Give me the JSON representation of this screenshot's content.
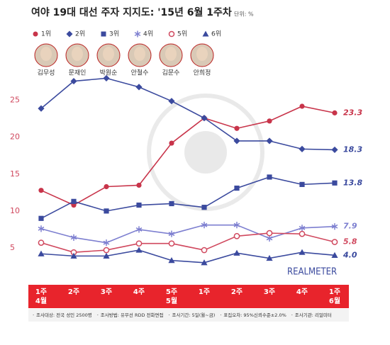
{
  "chart_data": {
    "type": "line",
    "title": "여야 19대 대선 주자 지지도: '15년 6월 1주차",
    "unit": "단위: %",
    "candidates": [
      "김무성",
      "문재인",
      "박원순",
      "안철수",
      "김문수",
      "안희정"
    ],
    "categories": [
      "1주\n4월",
      "2주",
      "3주",
      "4주",
      "5주\n5월",
      "1주",
      "2주",
      "3주",
      "4주",
      "1주\n6월"
    ],
    "ylim": [
      0,
      29
    ],
    "yticks": [
      5,
      10,
      15,
      20,
      25
    ],
    "grid": false,
    "watermark": "REALMETER",
    "notes": [
      "조사대상: 전국 성인 2500명",
      "조사방법: 유무선 RDD 전화면접",
      "조사기간: 5일(월~금)",
      "표집오차: 95%신뢰수준±2.0%",
      "조사기관: 리얼미터"
    ],
    "series": [
      {
        "name": "1위",
        "color": "#c8344a",
        "marker": "circle",
        "values": [
          12.8,
          10.8,
          13.3,
          13.5,
          19.2,
          22.6,
          21.2,
          22.2,
          24.2,
          23.3
        ]
      },
      {
        "name": "2위",
        "color": "#3b4a9e",
        "marker": "diamond",
        "values": [
          23.9,
          27.6,
          28.0,
          26.8,
          24.9,
          22.6,
          19.5,
          19.5,
          18.4,
          18.3
        ]
      },
      {
        "name": "3위",
        "color": "#3b4a9e",
        "marker": "square",
        "values": [
          9.0,
          11.3,
          10.0,
          10.8,
          11.0,
          10.5,
          13.1,
          14.6,
          13.6,
          13.8
        ]
      },
      {
        "name": "4위",
        "color": "#7d7fd0",
        "marker": "asterisk",
        "values": [
          7.6,
          6.4,
          5.7,
          7.5,
          6.9,
          8.1,
          8.1,
          6.3,
          7.7,
          7.9
        ]
      },
      {
        "name": "5위",
        "color": "#d0485e",
        "marker": "open-circle",
        "values": [
          5.7,
          4.4,
          4.7,
          5.6,
          5.6,
          4.7,
          6.6,
          7.0,
          6.9,
          5.8
        ]
      },
      {
        "name": "6위",
        "color": "#3b4a9e",
        "marker": "triangle",
        "values": [
          4.2,
          3.9,
          3.9,
          4.7,
          3.3,
          3.0,
          4.3,
          3.6,
          4.4,
          4.0
        ],
        "value_labels": [
          null,
          null,
          null,
          null,
          null,
          null,
          null,
          null,
          null,
          "4.0"
        ]
      }
    ]
  }
}
